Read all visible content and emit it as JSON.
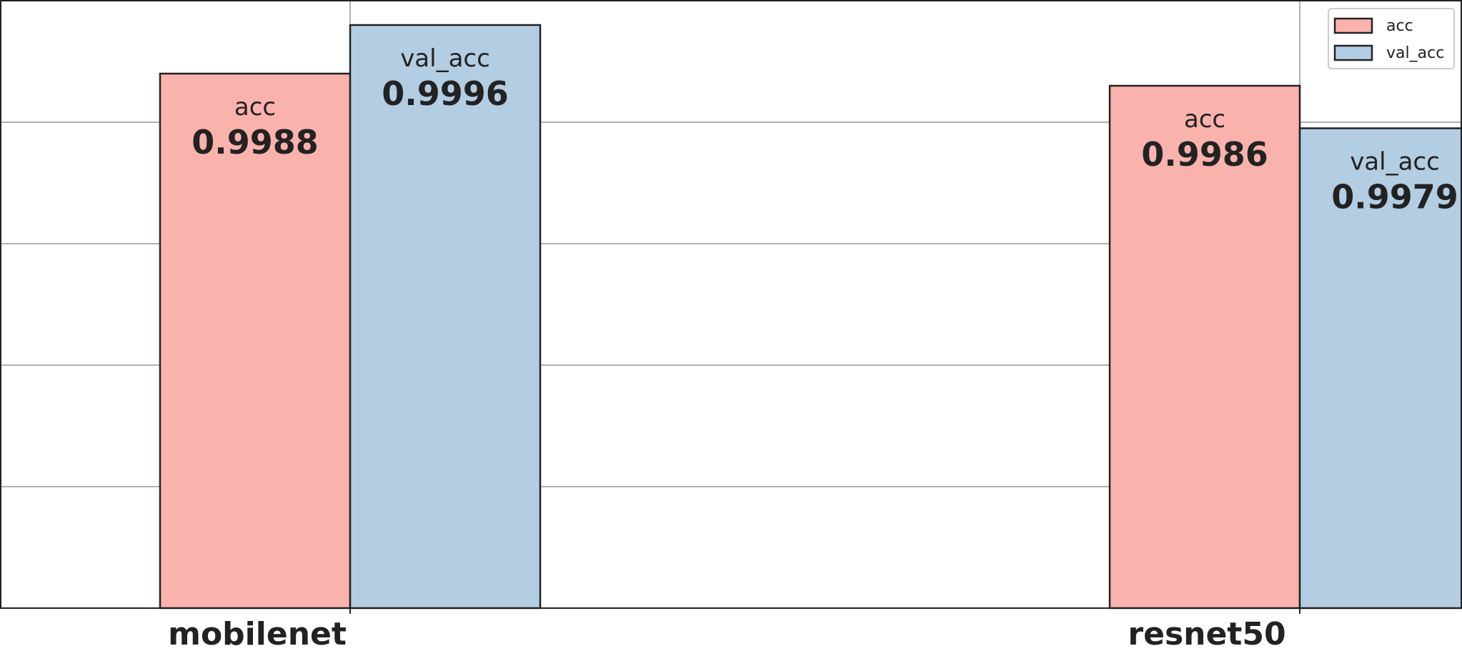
{
  "chart_data": {
    "type": "bar",
    "title": "",
    "xlabel": "",
    "ylabel": "",
    "categories": [
      "mobilenet",
      "resnet50"
    ],
    "series": [
      {
        "name": "acc",
        "values": [
          0.9988,
          0.9986
        ],
        "color": "#fab2ad"
      },
      {
        "name": "val_acc",
        "values": [
          0.9996,
          0.9979
        ],
        "color": "#b3cde2"
      }
    ],
    "ylim": [
      0.99,
      1.0
    ],
    "grid": true,
    "legend_position": "top-right",
    "value_labels": [
      {
        "name": "acc",
        "values": [
          "0.9988",
          "0.9986"
        ]
      },
      {
        "name": "val_acc",
        "values": [
          "0.9996",
          "0.9979"
        ]
      }
    ],
    "y_tick_labels_visible": false
  }
}
